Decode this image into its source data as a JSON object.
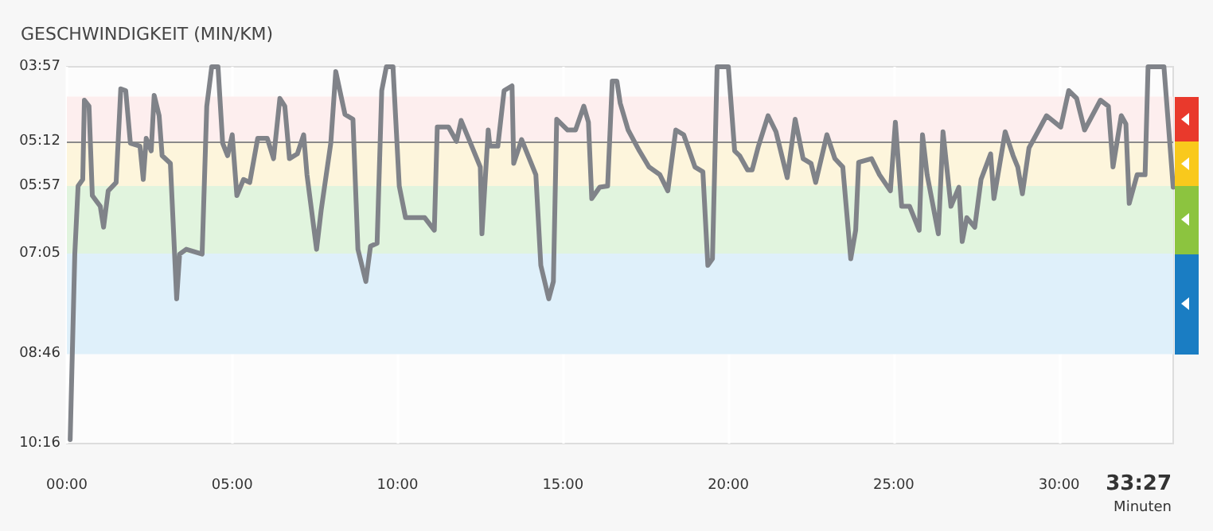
{
  "chart_data": {
    "type": "line",
    "title": "GESCHWINDIGKEIT (MIN/KM)",
    "xlabel": "Minuten",
    "x": [
      0.1,
      0.24,
      0.34,
      0.48,
      0.53,
      0.67,
      0.77,
      1.01,
      1.11,
      1.25,
      1.49,
      1.63,
      1.78,
      1.92,
      2.21,
      2.31,
      2.4,
      2.55,
      2.64,
      2.79,
      2.88,
      3.13,
      3.32,
      3.41,
      3.61,
      4.09,
      4.23,
      4.38,
      4.57,
      4.71,
      4.86,
      5.0,
      5.14,
      5.34,
      5.53,
      5.77,
      6.06,
      6.25,
      6.44,
      6.59,
      6.73,
      6.97,
      7.16,
      7.26,
      7.55,
      7.69,
      7.98,
      8.13,
      8.41,
      8.65,
      8.8,
      9.04,
      9.18,
      9.38,
      9.52,
      9.66,
      9.86,
      10.05,
      10.24,
      10.82,
      11.11,
      11.2,
      11.54,
      11.78,
      11.92,
      12.16,
      12.5,
      12.55,
      12.74,
      12.79,
      13.03,
      13.22,
      13.46,
      13.51,
      13.75,
      14.18,
      14.33,
      14.57,
      14.71,
      14.81,
      15.14,
      15.38,
      15.63,
      15.77,
      15.87,
      16.11,
      16.35,
      16.49,
      16.63,
      16.73,
      16.97,
      17.31,
      17.6,
      17.93,
      18.17,
      18.41,
      18.65,
      18.99,
      19.23,
      19.38,
      19.52,
      19.66,
      20.0,
      20.19,
      20.34,
      20.58,
      20.72,
      20.91,
      21.2,
      21.44,
      21.78,
      22.02,
      22.26,
      22.5,
      22.64,
      22.98,
      23.22,
      23.46,
      23.7,
      23.85,
      23.94,
      24.33,
      24.57,
      24.9,
      25.05,
      25.24,
      25.48,
      25.77,
      25.87,
      26.01,
      26.35,
      26.49,
      26.73,
      26.97,
      27.07,
      27.21,
      27.45,
      27.64,
      27.93,
      28.03,
      28.37,
      28.61,
      28.75,
      28.89,
      29.09,
      29.23,
      29.62,
      30.05,
      30.29,
      30.53,
      30.77,
      31.25,
      31.49,
      31.63,
      31.88,
      32.02,
      32.12,
      32.36,
      32.6,
      32.69,
      33.17,
      33.45
    ],
    "series": [
      {
        "color": "#808389",
        "values": [
          10.2,
          7.09,
          5.95,
          5.84,
          4.51,
          4.61,
          6.11,
          6.29,
          6.64,
          6.03,
          5.89,
          4.32,
          4.35,
          5.23,
          5.28,
          5.84,
          5.15,
          5.36,
          4.43,
          4.77,
          5.44,
          5.57,
          7.84,
          7.09,
          7.01,
          7.09,
          4.61,
          3.95,
          3.95,
          5.23,
          5.44,
          5.09,
          6.11,
          5.84,
          5.89,
          5.15,
          5.15,
          5.49,
          4.48,
          4.61,
          5.49,
          5.41,
          5.09,
          5.76,
          7.01,
          6.35,
          5.23,
          4.03,
          4.75,
          4.83,
          7.01,
          7.55,
          6.96,
          6.91,
          4.35,
          3.95,
          3.95,
          5.95,
          6.48,
          6.48,
          6.69,
          4.96,
          4.96,
          5.2,
          4.85,
          5.17,
          5.63,
          6.75,
          5.01,
          5.28,
          5.28,
          4.35,
          4.27,
          5.57,
          5.17,
          5.76,
          7.28,
          7.84,
          7.55,
          4.83,
          5.01,
          5.01,
          4.61,
          4.88,
          6.16,
          5.97,
          5.95,
          4.19,
          4.19,
          4.56,
          5.01,
          5.36,
          5.63,
          5.76,
          6.03,
          5.01,
          5.09,
          5.63,
          5.71,
          7.28,
          7.17,
          3.95,
          3.95,
          5.36,
          5.44,
          5.68,
          5.68,
          5.28,
          4.77,
          5.04,
          5.81,
          4.83,
          5.49,
          5.57,
          5.89,
          5.09,
          5.49,
          5.63,
          7.17,
          6.69,
          5.55,
          5.49,
          5.76,
          6.03,
          4.88,
          6.29,
          6.29,
          6.69,
          5.09,
          5.76,
          6.75,
          5.04,
          6.29,
          5.97,
          6.88,
          6.48,
          6.64,
          5.84,
          5.41,
          6.16,
          5.04,
          5.44,
          5.63,
          6.08,
          5.31,
          5.17,
          4.77,
          4.96,
          4.35,
          4.48,
          5.01,
          4.51,
          4.61,
          5.63,
          4.77,
          4.91,
          6.24,
          5.76,
          5.76,
          3.95,
          3.95,
          5.97
        ]
      }
    ],
    "xlim": [
      0,
      33.45
    ],
    "xticks": [
      {
        "value": 0,
        "label": "00:00"
      },
      {
        "value": 5,
        "label": "05:00"
      },
      {
        "value": 10,
        "label": "10:00"
      },
      {
        "value": 15,
        "label": "15:00"
      },
      {
        "value": 20,
        "label": "20:00"
      },
      {
        "value": 25,
        "label": "25:00"
      },
      {
        "value": 30,
        "label": "30:00"
      }
    ],
    "annotations": [
      "33:27"
    ],
    "ylim": [
      10.267,
      3.95
    ],
    "yticks": [
      {
        "value": 3.95,
        "label": "03:57"
      },
      {
        "value": 5.2,
        "label": "05:12"
      },
      {
        "value": 5.95,
        "label": "05:57"
      },
      {
        "value": 7.083,
        "label": "07:05"
      },
      {
        "value": 8.767,
        "label": "08:46"
      },
      {
        "value": 10.267,
        "label": "10:16"
      }
    ],
    "bands": [
      {
        "axis": "y",
        "from": 4.45,
        "to": 5.2,
        "color": "#fdeeee"
      },
      {
        "axis": "y",
        "from": 5.2,
        "to": 5.95,
        "color": "#fdf5dc"
      },
      {
        "axis": "y",
        "from": 5.95,
        "to": 7.083,
        "color": "#e1f4de"
      },
      {
        "axis": "y",
        "from": 7.083,
        "to": 8.767,
        "color": "#dff0fa"
      }
    ],
    "ref_lines": [
      {
        "axis": "y",
        "value": 5.2,
        "color": "#8a8a8a"
      }
    ],
    "grid": "x",
    "marker": "none",
    "line_style": "solid"
  }
}
